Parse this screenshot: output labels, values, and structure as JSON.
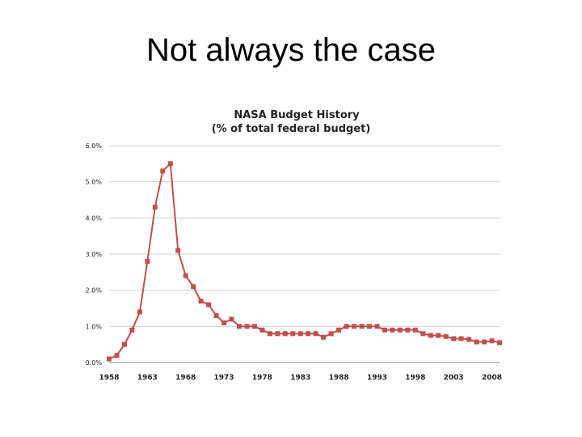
{
  "slide": {
    "title": "Not always the case"
  },
  "chart_data": {
    "type": "line",
    "title": "NASA Budget History",
    "subtitle": "(% of total federal budget)",
    "xlabel": "",
    "ylabel": "",
    "ylim": [
      0,
      6
    ],
    "xlim": [
      1958,
      2009
    ],
    "grid": true,
    "y_tick_labels": [
      "0.0%",
      "1.0%",
      "2.0%",
      "3.0%",
      "4.0%",
      "5.0%",
      "6.0%"
    ],
    "y_tick_values": [
      0,
      1,
      2,
      3,
      4,
      5,
      6
    ],
    "x_tick_labels": [
      "1958",
      "1963",
      "1968",
      "1973",
      "1978",
      "1983",
      "1988",
      "1993",
      "1998",
      "2003",
      "2008"
    ],
    "x_tick_values": [
      1958,
      1963,
      1968,
      1973,
      1978,
      1983,
      1988,
      1993,
      1998,
      2003,
      2008
    ],
    "line_color": "#c0504d",
    "marker_color": "#c0504d",
    "x": [
      1958,
      1959,
      1960,
      1961,
      1962,
      1963,
      1964,
      1965,
      1966,
      1967,
      1968,
      1969,
      1970,
      1971,
      1972,
      1973,
      1974,
      1975,
      1976,
      1977,
      1978,
      1979,
      1980,
      1981,
      1982,
      1983,
      1984,
      1985,
      1986,
      1987,
      1988,
      1989,
      1990,
      1991,
      1992,
      1993,
      1994,
      1995,
      1996,
      1997,
      1998,
      1999,
      2000,
      2001,
      2002,
      2003,
      2004,
      2005,
      2006,
      2007,
      2008,
      2009
    ],
    "values": [
      0.1,
      0.2,
      0.5,
      0.9,
      1.4,
      2.8,
      4.3,
      5.3,
      5.5,
      3.1,
      2.4,
      2.1,
      1.7,
      1.6,
      1.3,
      1.1,
      1.2,
      1.0,
      1.0,
      1.0,
      0.9,
      0.8,
      0.8,
      0.8,
      0.8,
      0.8,
      0.8,
      0.8,
      0.7,
      0.8,
      0.9,
      1.0,
      1.0,
      1.0,
      1.0,
      1.0,
      0.9,
      0.9,
      0.9,
      0.9,
      0.9,
      0.8,
      0.75,
      0.75,
      0.72,
      0.66,
      0.66,
      0.64,
      0.57,
      0.57,
      0.6,
      0.55
    ]
  }
}
